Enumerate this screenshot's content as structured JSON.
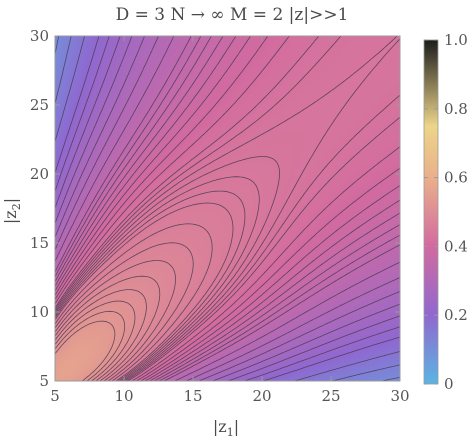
{
  "chart_data": {
    "type": "contour",
    "title": "D = 3  N → ∞  M = 2  |z|>>1",
    "xlabel_main": "|z",
    "xlabel_sub": "1",
    "xlabel_close": "|",
    "ylabel_main": "|z",
    "ylabel_sub": "2",
    "ylabel_close": "|",
    "xlim": [
      5,
      30
    ],
    "ylim": [
      5,
      30
    ],
    "xticks": [
      5,
      10,
      15,
      20,
      25,
      30
    ],
    "yticks": [
      5,
      10,
      15,
      20,
      25,
      30
    ],
    "colorbar": {
      "range": [
        0,
        1
      ],
      "ticks": [
        "0",
        "0.2",
        "0.4",
        "0.6",
        "0.8",
        "1.0"
      ],
      "tick_values": [
        0,
        0.2,
        0.4,
        0.6,
        0.8,
        1.0
      ],
      "stops": [
        {
          "v": 0.0,
          "color": "#5bb5e3"
        },
        {
          "v": 0.2,
          "color": "#9068d0"
        },
        {
          "v": 0.4,
          "color": "#d26aa0"
        },
        {
          "v": 0.6,
          "color": "#eab08a"
        },
        {
          "v": 0.75,
          "color": "#ecd58a"
        },
        {
          "v": 1.0,
          "color": "#1c1c1c"
        }
      ]
    },
    "contour_levels": [
      0.05,
      0.08,
      0.11,
      0.14,
      0.17,
      0.2,
      0.22,
      0.24,
      0.26,
      0.28,
      0.3,
      0.32,
      0.34,
      0.35,
      0.36,
      0.37,
      0.38,
      0.39,
      0.4,
      0.41,
      0.42,
      0.425,
      0.43,
      0.435,
      0.44,
      0.445,
      0.45,
      0.46,
      0.47,
      0.48,
      0.49,
      0.5,
      0.51,
      0.52,
      0.53
    ]
  }
}
